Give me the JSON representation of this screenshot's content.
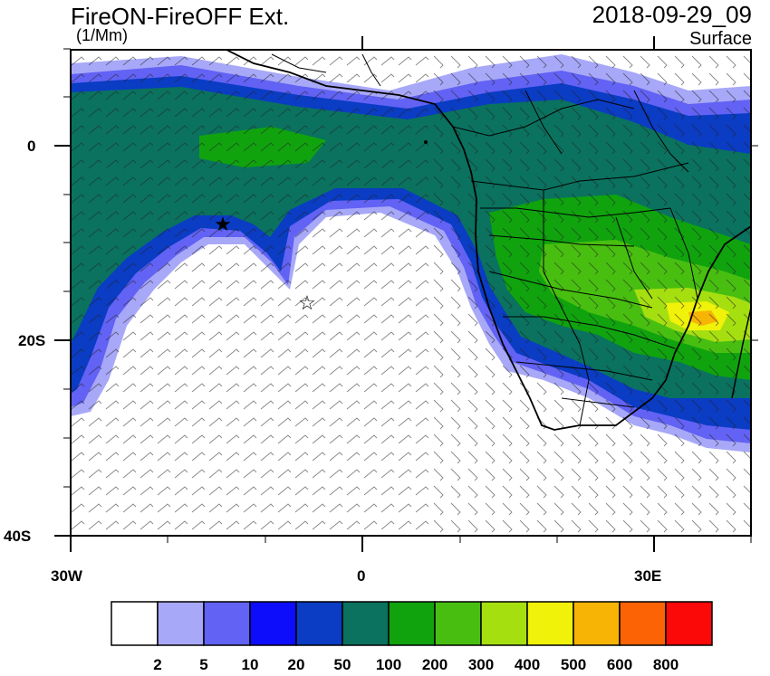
{
  "header": {
    "title": "FireON-FireOFF Ext.",
    "units": "(1/Mm)",
    "datetime": "2018-09-29_09",
    "level": "Surface"
  },
  "map": {
    "lat_labels": [
      "0",
      "20S",
      "40S"
    ],
    "lon_labels": [
      "30W",
      "0",
      "30E"
    ],
    "markers": [
      {
        "name": "star-marker-1",
        "symbol": "★"
      },
      {
        "name": "star-marker-2",
        "symbol": "☆"
      }
    ]
  },
  "colorbar": {
    "colors": [
      "#ffffff",
      "#a8a8f8",
      "#6262f4",
      "#0d0dfb",
      "#0a3cc4",
      "#0a725f",
      "#10a30e",
      "#48bf10",
      "#a6df10",
      "#f0f20a",
      "#f8b404",
      "#fb6304",
      "#fb0808"
    ],
    "labels": [
      "2",
      "5",
      "10",
      "20",
      "50",
      "100",
      "200",
      "300",
      "400",
      "500",
      "600",
      "800"
    ]
  }
}
